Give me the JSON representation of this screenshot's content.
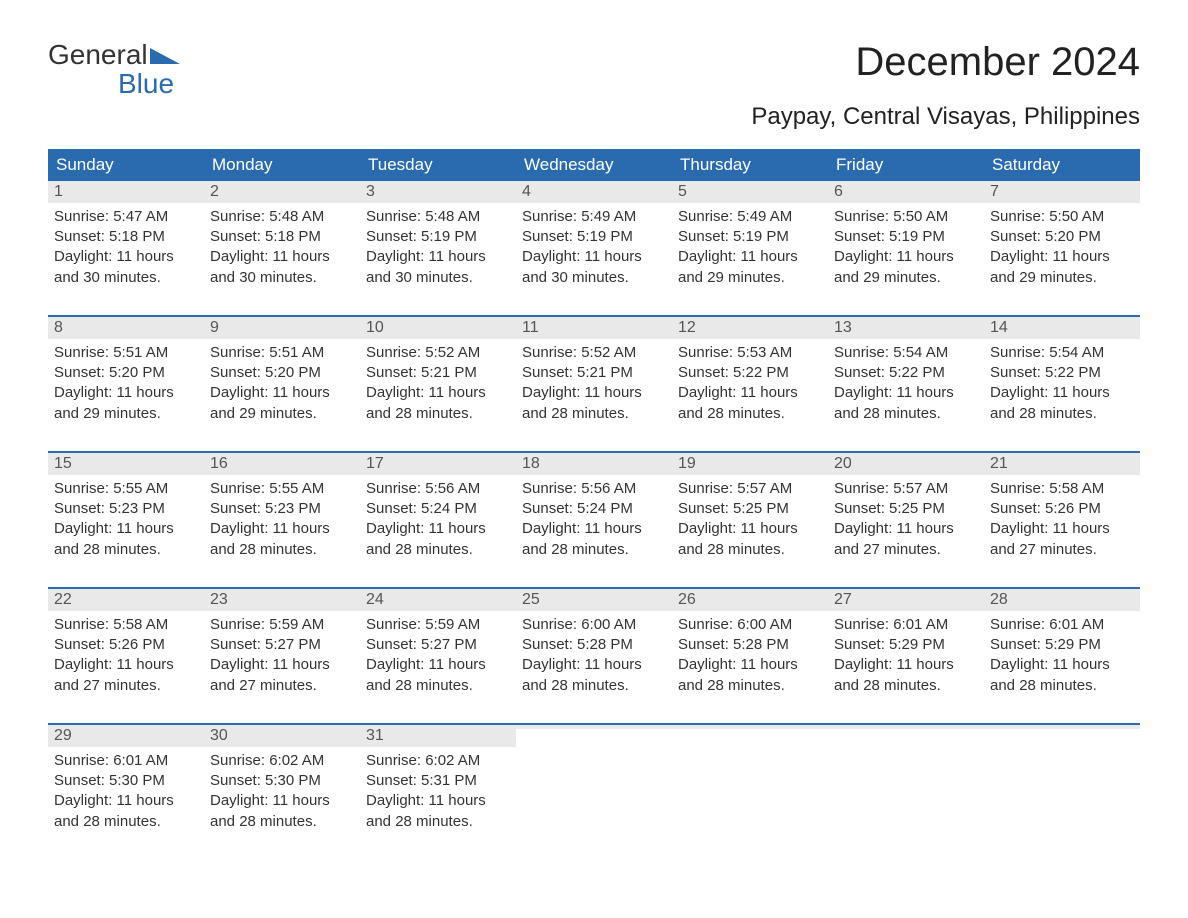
{
  "logo": {
    "line1": "General",
    "line2": "Blue",
    "accent_color": "#2a6bb0"
  },
  "title": "December 2024",
  "subtitle": "Paypay, Central Visayas, Philippines",
  "colors": {
    "header_bg": "#2a6bb0",
    "header_text": "#ffffff",
    "daynum_bg": "#e9e9e9",
    "text": "#333333",
    "week_border": "#2a6bb0",
    "page_bg": "#ffffff"
  },
  "weekdays": [
    "Sunday",
    "Monday",
    "Tuesday",
    "Wednesday",
    "Thursday",
    "Friday",
    "Saturday"
  ],
  "weeks": [
    [
      {
        "n": "1",
        "sunrise": "Sunrise: 5:47 AM",
        "sunset": "Sunset: 5:18 PM",
        "daylight1": "Daylight: 11 hours",
        "daylight2": "and 30 minutes."
      },
      {
        "n": "2",
        "sunrise": "Sunrise: 5:48 AM",
        "sunset": "Sunset: 5:18 PM",
        "daylight1": "Daylight: 11 hours",
        "daylight2": "and 30 minutes."
      },
      {
        "n": "3",
        "sunrise": "Sunrise: 5:48 AM",
        "sunset": "Sunset: 5:19 PM",
        "daylight1": "Daylight: 11 hours",
        "daylight2": "and 30 minutes."
      },
      {
        "n": "4",
        "sunrise": "Sunrise: 5:49 AM",
        "sunset": "Sunset: 5:19 PM",
        "daylight1": "Daylight: 11 hours",
        "daylight2": "and 30 minutes."
      },
      {
        "n": "5",
        "sunrise": "Sunrise: 5:49 AM",
        "sunset": "Sunset: 5:19 PM",
        "daylight1": "Daylight: 11 hours",
        "daylight2": "and 29 minutes."
      },
      {
        "n": "6",
        "sunrise": "Sunrise: 5:50 AM",
        "sunset": "Sunset: 5:19 PM",
        "daylight1": "Daylight: 11 hours",
        "daylight2": "and 29 minutes."
      },
      {
        "n": "7",
        "sunrise": "Sunrise: 5:50 AM",
        "sunset": "Sunset: 5:20 PM",
        "daylight1": "Daylight: 11 hours",
        "daylight2": "and 29 minutes."
      }
    ],
    [
      {
        "n": "8",
        "sunrise": "Sunrise: 5:51 AM",
        "sunset": "Sunset: 5:20 PM",
        "daylight1": "Daylight: 11 hours",
        "daylight2": "and 29 minutes."
      },
      {
        "n": "9",
        "sunrise": "Sunrise: 5:51 AM",
        "sunset": "Sunset: 5:20 PM",
        "daylight1": "Daylight: 11 hours",
        "daylight2": "and 29 minutes."
      },
      {
        "n": "10",
        "sunrise": "Sunrise: 5:52 AM",
        "sunset": "Sunset: 5:21 PM",
        "daylight1": "Daylight: 11 hours",
        "daylight2": "and 28 minutes."
      },
      {
        "n": "11",
        "sunrise": "Sunrise: 5:52 AM",
        "sunset": "Sunset: 5:21 PM",
        "daylight1": "Daylight: 11 hours",
        "daylight2": "and 28 minutes."
      },
      {
        "n": "12",
        "sunrise": "Sunrise: 5:53 AM",
        "sunset": "Sunset: 5:22 PM",
        "daylight1": "Daylight: 11 hours",
        "daylight2": "and 28 minutes."
      },
      {
        "n": "13",
        "sunrise": "Sunrise: 5:54 AM",
        "sunset": "Sunset: 5:22 PM",
        "daylight1": "Daylight: 11 hours",
        "daylight2": "and 28 minutes."
      },
      {
        "n": "14",
        "sunrise": "Sunrise: 5:54 AM",
        "sunset": "Sunset: 5:22 PM",
        "daylight1": "Daylight: 11 hours",
        "daylight2": "and 28 minutes."
      }
    ],
    [
      {
        "n": "15",
        "sunrise": "Sunrise: 5:55 AM",
        "sunset": "Sunset: 5:23 PM",
        "daylight1": "Daylight: 11 hours",
        "daylight2": "and 28 minutes."
      },
      {
        "n": "16",
        "sunrise": "Sunrise: 5:55 AM",
        "sunset": "Sunset: 5:23 PM",
        "daylight1": "Daylight: 11 hours",
        "daylight2": "and 28 minutes."
      },
      {
        "n": "17",
        "sunrise": "Sunrise: 5:56 AM",
        "sunset": "Sunset: 5:24 PM",
        "daylight1": "Daylight: 11 hours",
        "daylight2": "and 28 minutes."
      },
      {
        "n": "18",
        "sunrise": "Sunrise: 5:56 AM",
        "sunset": "Sunset: 5:24 PM",
        "daylight1": "Daylight: 11 hours",
        "daylight2": "and 28 minutes."
      },
      {
        "n": "19",
        "sunrise": "Sunrise: 5:57 AM",
        "sunset": "Sunset: 5:25 PM",
        "daylight1": "Daylight: 11 hours",
        "daylight2": "and 28 minutes."
      },
      {
        "n": "20",
        "sunrise": "Sunrise: 5:57 AM",
        "sunset": "Sunset: 5:25 PM",
        "daylight1": "Daylight: 11 hours",
        "daylight2": "and 27 minutes."
      },
      {
        "n": "21",
        "sunrise": "Sunrise: 5:58 AM",
        "sunset": "Sunset: 5:26 PM",
        "daylight1": "Daylight: 11 hours",
        "daylight2": "and 27 minutes."
      }
    ],
    [
      {
        "n": "22",
        "sunrise": "Sunrise: 5:58 AM",
        "sunset": "Sunset: 5:26 PM",
        "daylight1": "Daylight: 11 hours",
        "daylight2": "and 27 minutes."
      },
      {
        "n": "23",
        "sunrise": "Sunrise: 5:59 AM",
        "sunset": "Sunset: 5:27 PM",
        "daylight1": "Daylight: 11 hours",
        "daylight2": "and 27 minutes."
      },
      {
        "n": "24",
        "sunrise": "Sunrise: 5:59 AM",
        "sunset": "Sunset: 5:27 PM",
        "daylight1": "Daylight: 11 hours",
        "daylight2": "and 28 minutes."
      },
      {
        "n": "25",
        "sunrise": "Sunrise: 6:00 AM",
        "sunset": "Sunset: 5:28 PM",
        "daylight1": "Daylight: 11 hours",
        "daylight2": "and 28 minutes."
      },
      {
        "n": "26",
        "sunrise": "Sunrise: 6:00 AM",
        "sunset": "Sunset: 5:28 PM",
        "daylight1": "Daylight: 11 hours",
        "daylight2": "and 28 minutes."
      },
      {
        "n": "27",
        "sunrise": "Sunrise: 6:01 AM",
        "sunset": "Sunset: 5:29 PM",
        "daylight1": "Daylight: 11 hours",
        "daylight2": "and 28 minutes."
      },
      {
        "n": "28",
        "sunrise": "Sunrise: 6:01 AM",
        "sunset": "Sunset: 5:29 PM",
        "daylight1": "Daylight: 11 hours",
        "daylight2": "and 28 minutes."
      }
    ],
    [
      {
        "n": "29",
        "sunrise": "Sunrise: 6:01 AM",
        "sunset": "Sunset: 5:30 PM",
        "daylight1": "Daylight: 11 hours",
        "daylight2": "and 28 minutes."
      },
      {
        "n": "30",
        "sunrise": "Sunrise: 6:02 AM",
        "sunset": "Sunset: 5:30 PM",
        "daylight1": "Daylight: 11 hours",
        "daylight2": "and 28 minutes."
      },
      {
        "n": "31",
        "sunrise": "Sunrise: 6:02 AM",
        "sunset": "Sunset: 5:31 PM",
        "daylight1": "Daylight: 11 hours",
        "daylight2": "and 28 minutes."
      },
      {
        "empty": true
      },
      {
        "empty": true
      },
      {
        "empty": true
      },
      {
        "empty": true
      }
    ]
  ]
}
